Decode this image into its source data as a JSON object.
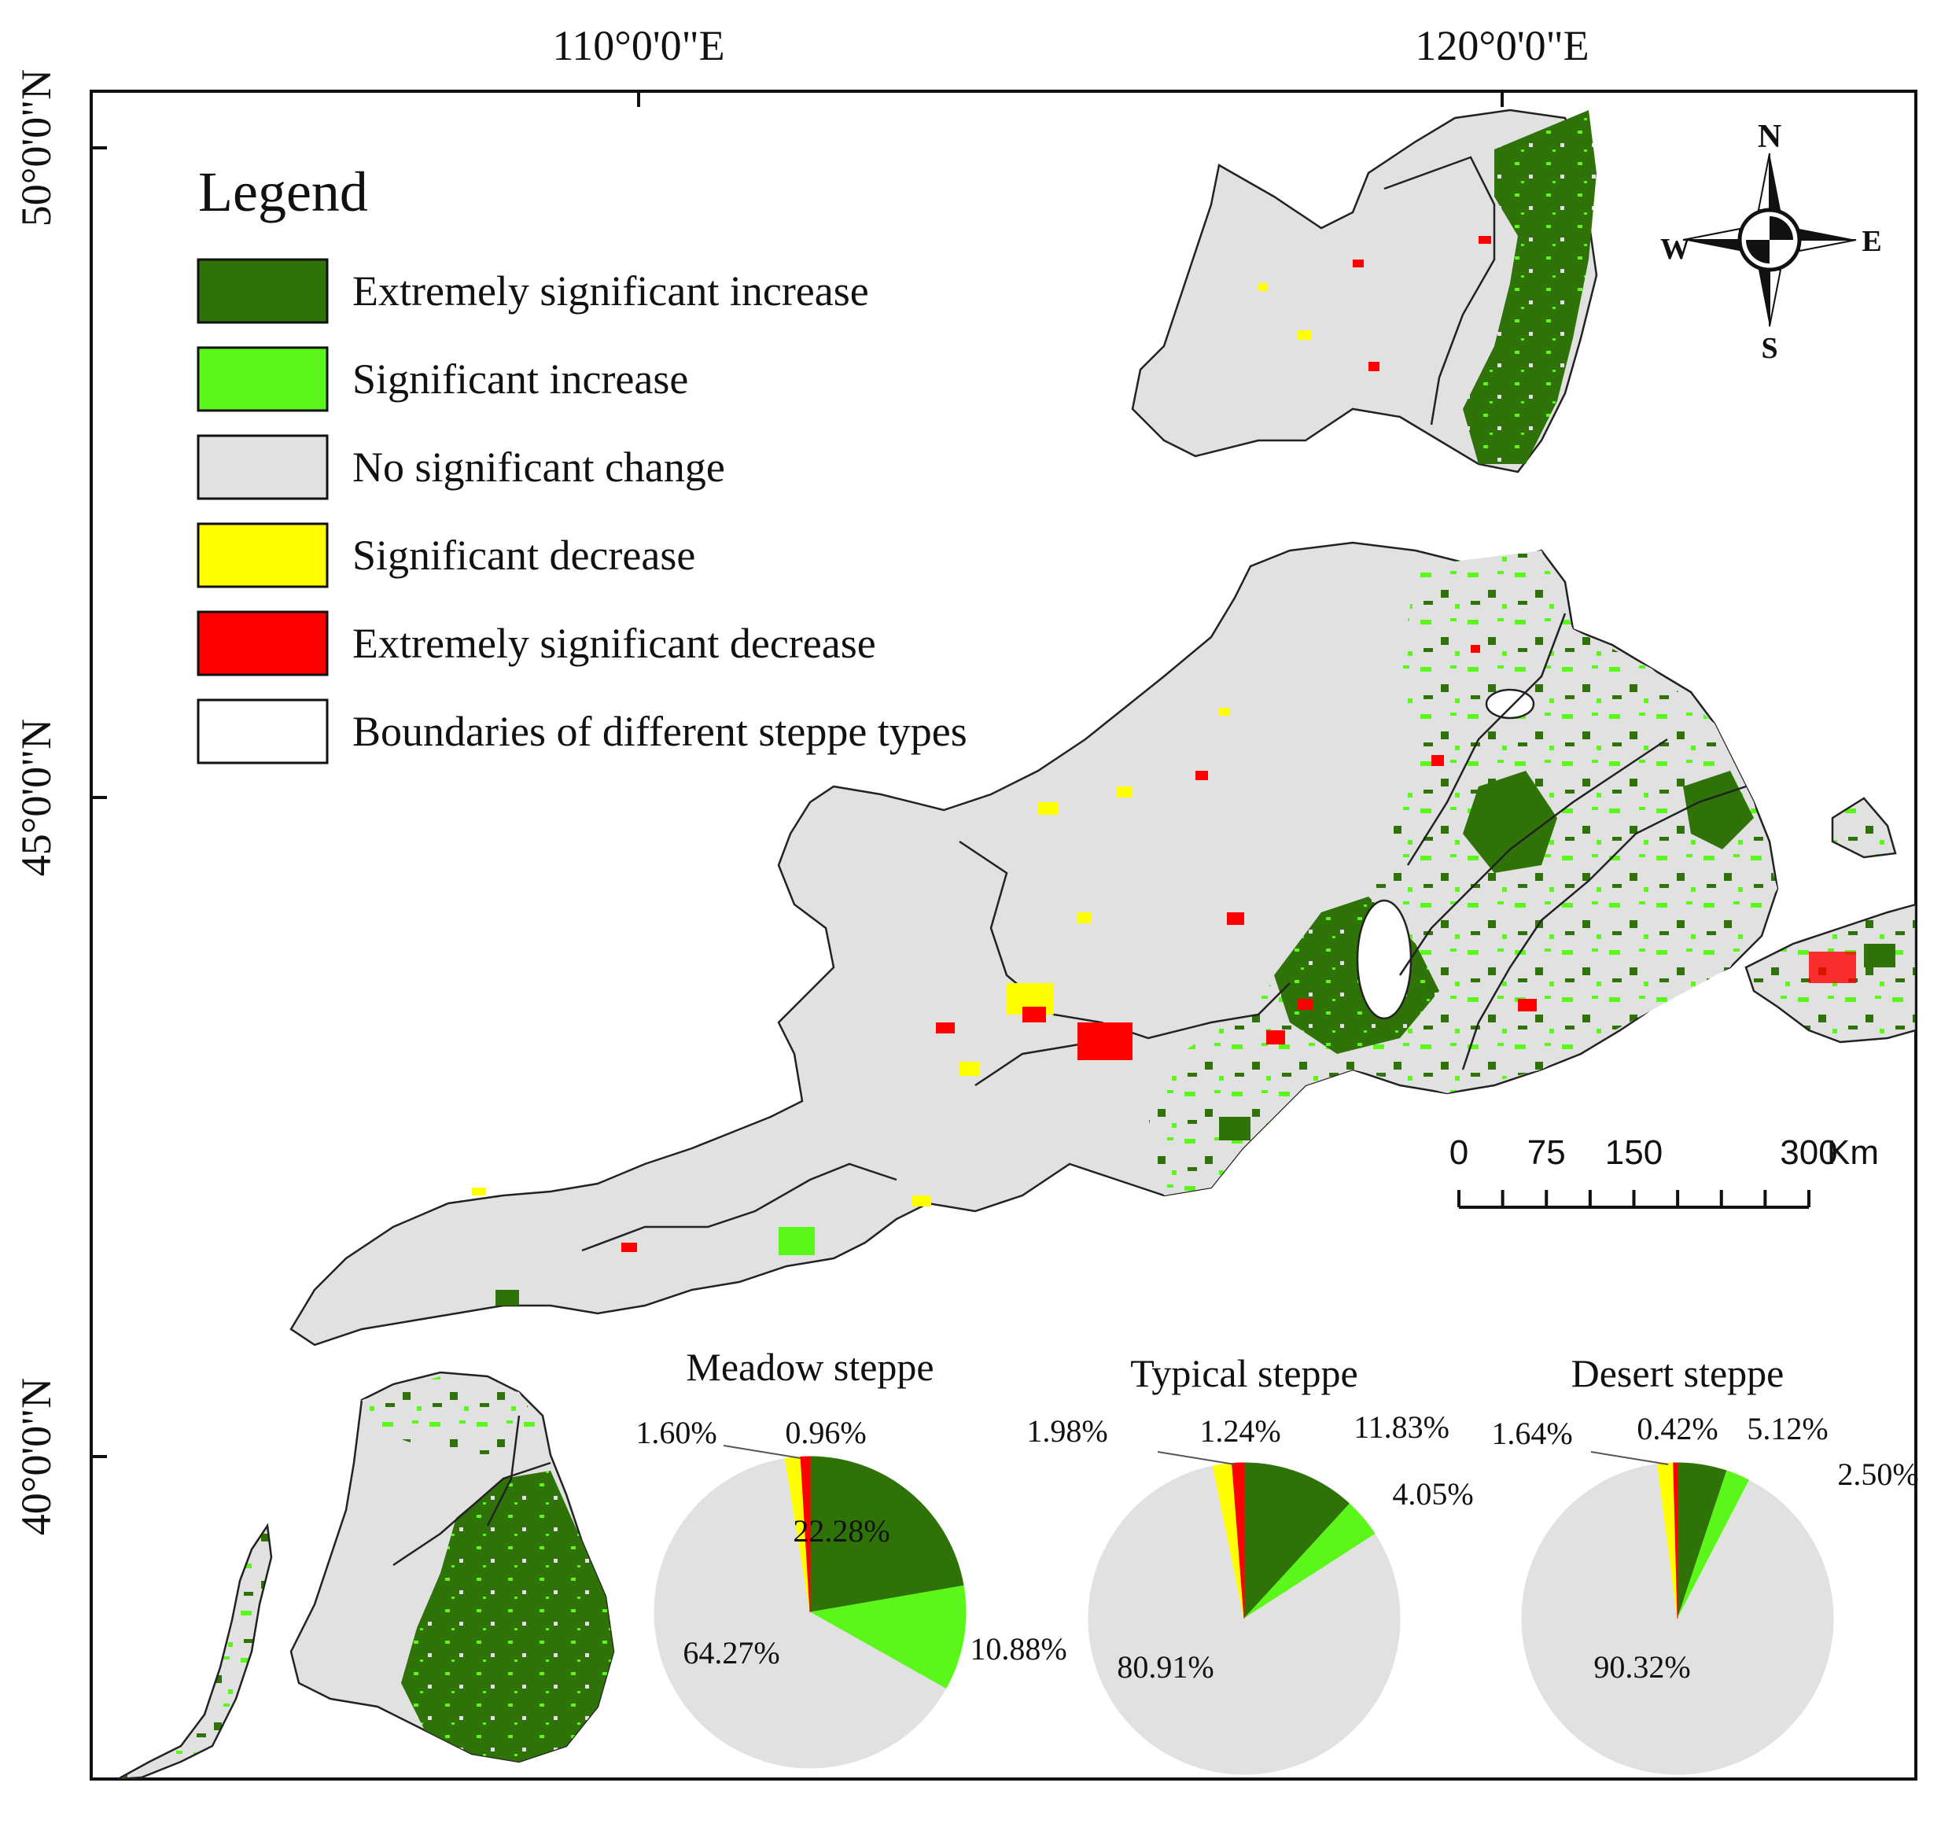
{
  "axes": {
    "longitudes": [
      "110°0'0\"E",
      "120°0'0\"E"
    ],
    "latitudes": [
      "50°0'0\"N",
      "45°0'0\"N",
      "40°0'0\"N"
    ]
  },
  "legend": {
    "title": "Legend",
    "items": [
      {
        "label": "Extremely significant increase",
        "color": "#2f7308"
      },
      {
        "label": "Significant increase",
        "color": "#5cf71a"
      },
      {
        "label": "No significant change",
        "color": "#e1e1e1"
      },
      {
        "label": "Significant decrease",
        "color": "#ffff00"
      },
      {
        "label": "Extremely significant decrease",
        "color": "#ff0000"
      },
      {
        "label": "Boundaries of different steppe types",
        "color": "#ffffff"
      }
    ]
  },
  "north_arrow": {
    "n": "N",
    "s": "S",
    "e": "E",
    "w": "W"
  },
  "scale_bar": {
    "ticks": [
      "0",
      "75",
      "150",
      "300"
    ],
    "unit": "Km"
  },
  "chart_data": [
    {
      "type": "pie",
      "title": "Meadow steppe",
      "slices": [
        {
          "label": "22.28%",
          "value": 22.28,
          "color": "#2f7308"
        },
        {
          "label": "10.88%",
          "value": 10.88,
          "color": "#5cf71a"
        },
        {
          "label": "64.27%",
          "value": 64.27,
          "color": "#e1e1e1"
        },
        {
          "label": "1.60%",
          "value": 1.6,
          "color": "#ffff00"
        },
        {
          "label": "0.96%",
          "value": 0.96,
          "color": "#ff0000"
        }
      ]
    },
    {
      "type": "pie",
      "title": "Typical steppe",
      "slices": [
        {
          "label": "11.83%",
          "value": 11.83,
          "color": "#2f7308"
        },
        {
          "label": "4.05%",
          "value": 4.05,
          "color": "#5cf71a"
        },
        {
          "label": "80.91%",
          "value": 80.91,
          "color": "#e1e1e1"
        },
        {
          "label": "1.98%",
          "value": 1.98,
          "color": "#ffff00"
        },
        {
          "label": "1.24%",
          "value": 1.24,
          "color": "#ff0000"
        }
      ]
    },
    {
      "type": "pie",
      "title": "Desert steppe",
      "slices": [
        {
          "label": "5.12%",
          "value": 5.12,
          "color": "#2f7308"
        },
        {
          "label": "2.50%",
          "value": 2.5,
          "color": "#5cf71a"
        },
        {
          "label": "90.32%",
          "value": 90.32,
          "color": "#e1e1e1"
        },
        {
          "label": "1.64%",
          "value": 1.64,
          "color": "#ffff00"
        },
        {
          "label": "0.42%",
          "value": 0.42,
          "color": "#ff0000"
        }
      ]
    }
  ]
}
